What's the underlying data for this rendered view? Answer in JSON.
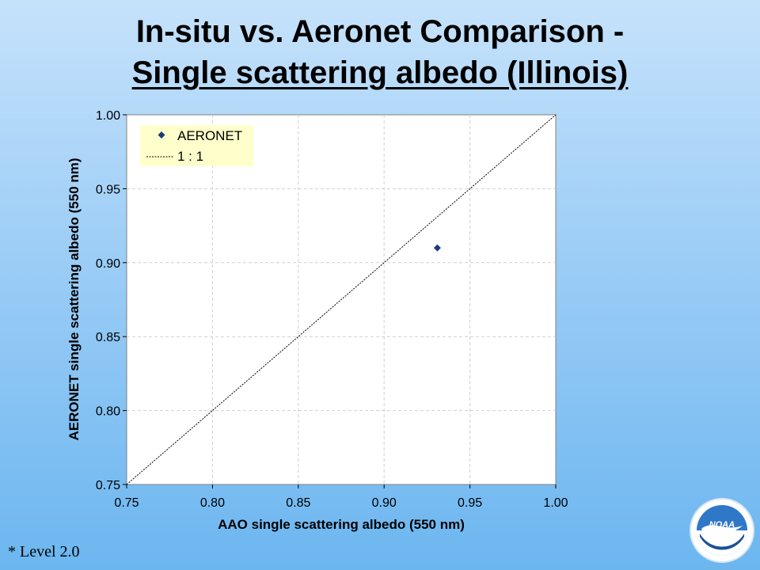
{
  "title_line1": "In-situ vs. Aeronet Comparison -",
  "title_line2": "Single scattering albedo (Illinois)",
  "footnote": "* Level 2.0",
  "logo_text": "NOAA",
  "colors": {
    "marker": "#1f3a7a",
    "legend_bg": "#ffffcc",
    "plot_bg": "#ffffff",
    "grid": "#cfcfcf"
  },
  "chart_data": {
    "type": "scatter",
    "xlabel": "AAO single scattering albedo (550 nm)",
    "ylabel": "AERONET single scattering albedo (550 nm)",
    "xlim": [
      0.75,
      1.0
    ],
    "ylim": [
      0.75,
      1.0
    ],
    "x_ticks": [
      "0.75",
      "0.80",
      "0.85",
      "0.90",
      "0.95",
      "1.00"
    ],
    "y_ticks": [
      "0.75",
      "0.80",
      "0.85",
      "0.90",
      "0.95",
      "1.00"
    ],
    "grid": true,
    "legend_position": "top-left",
    "series": [
      {
        "name": "AERONET",
        "marker": "diamond",
        "points": [
          [
            0.931,
            0.91
          ]
        ]
      },
      {
        "name": "1 : 1",
        "line": "dotted",
        "points": [
          [
            0.75,
            0.75
          ],
          [
            1.0,
            1.0
          ]
        ]
      }
    ]
  }
}
